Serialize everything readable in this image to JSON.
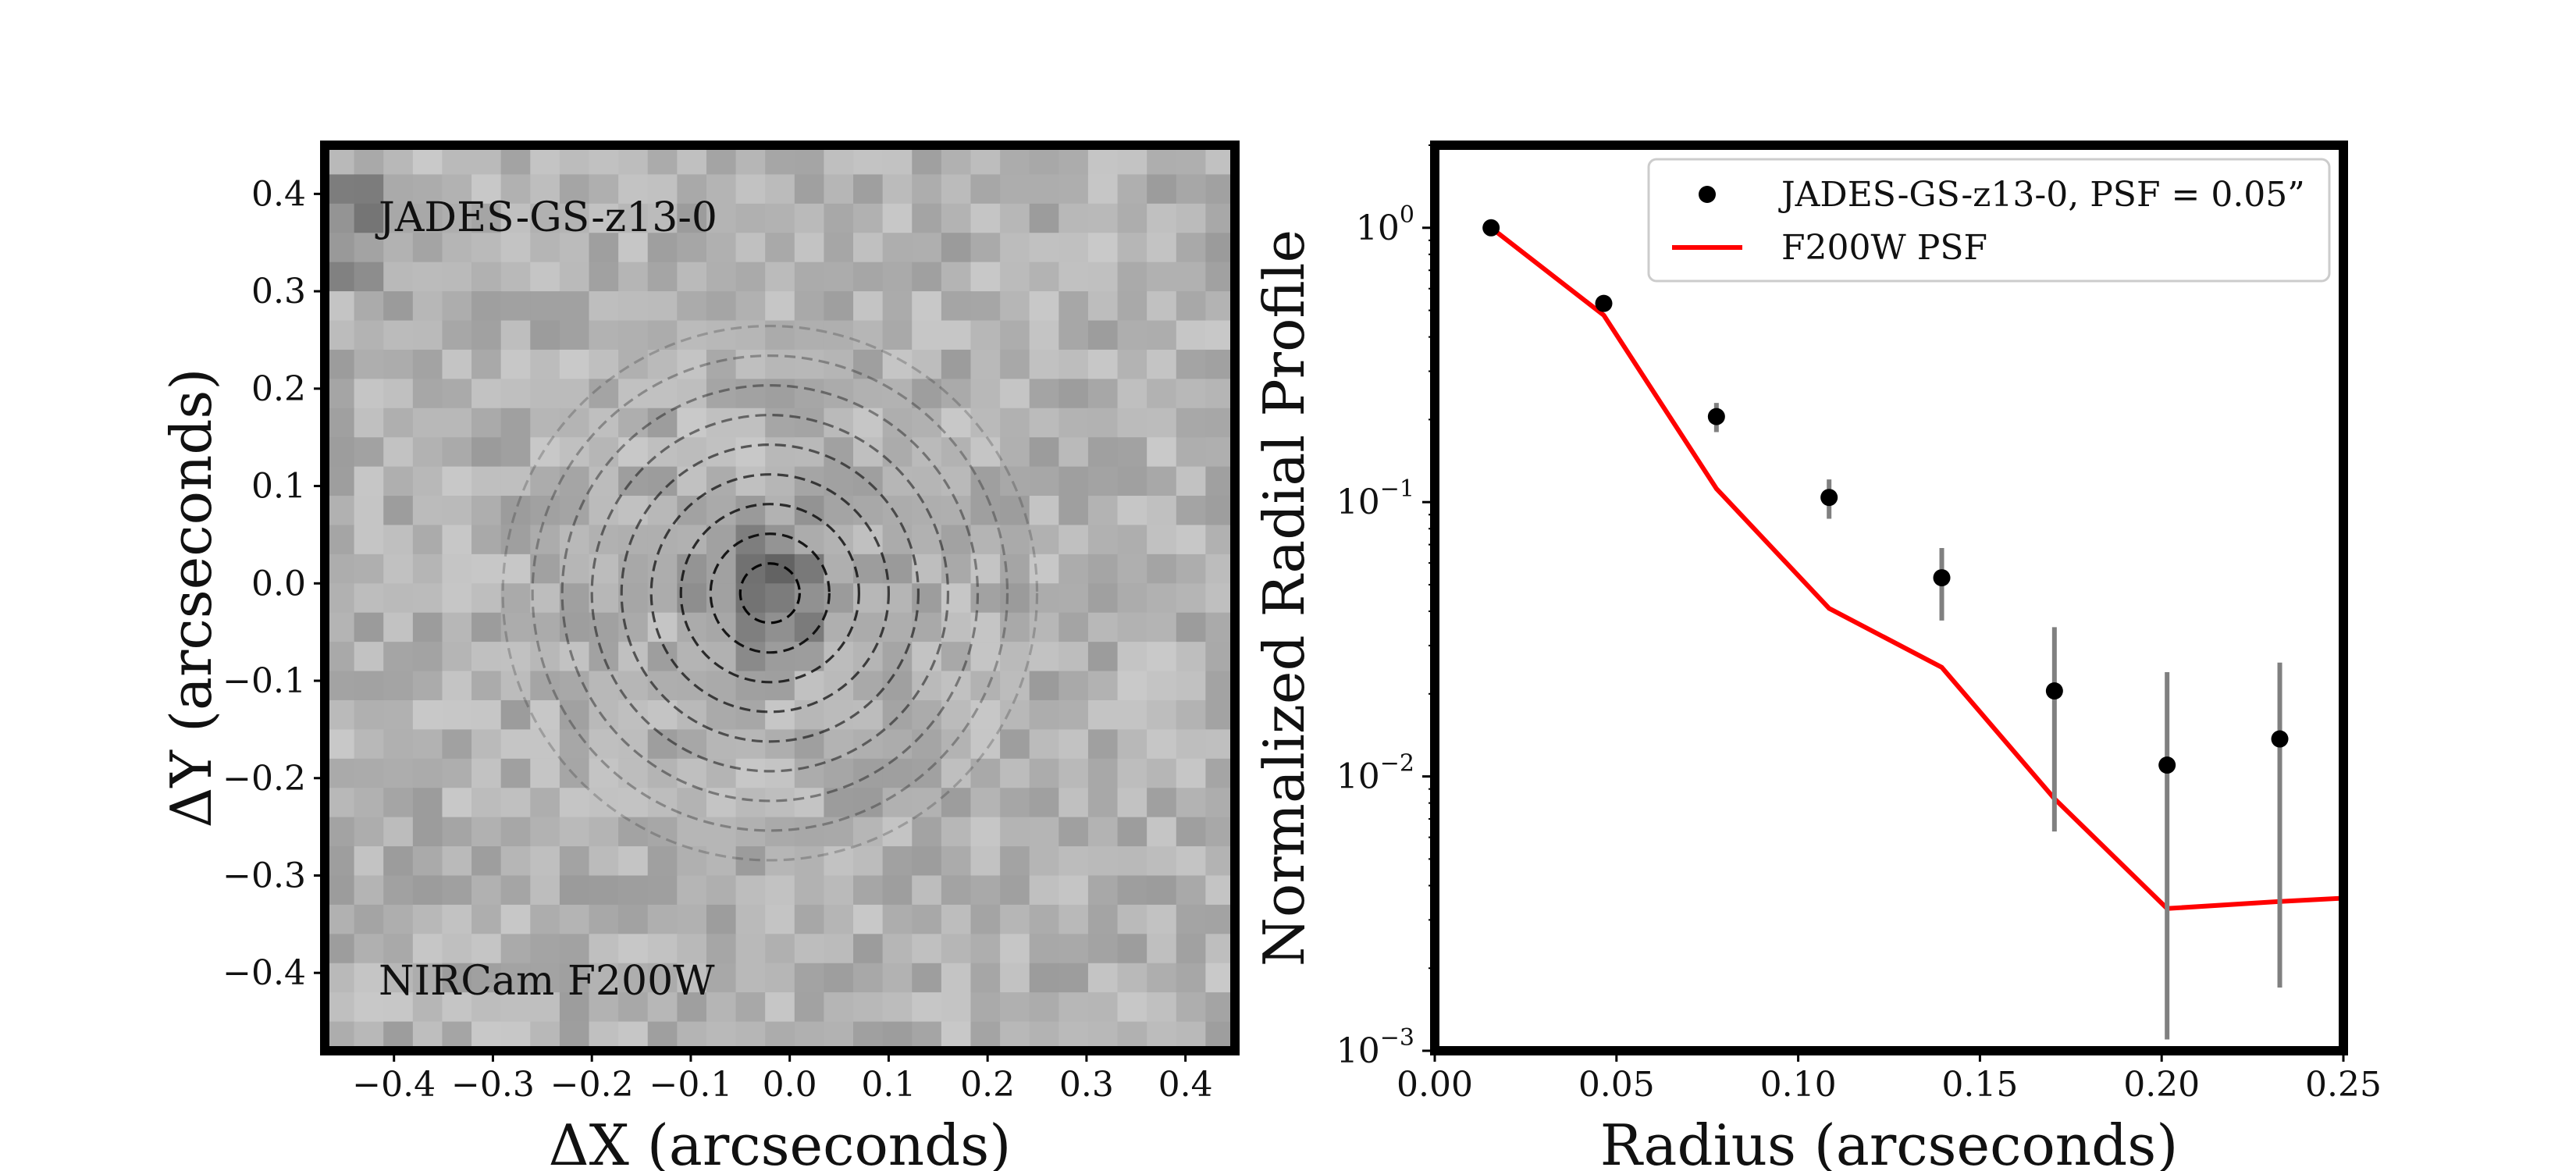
{
  "chart_data": [
    {
      "type": "heatmap",
      "title": "",
      "xlabel": "ΔX (arcseconds)",
      "ylabel": "ΔY (arcseconds)",
      "xlim": [
        -0.47,
        0.45
      ],
      "ylim": [
        -0.48,
        0.45
      ],
      "xticks": [
        -0.4,
        -0.3,
        -0.2,
        -0.1,
        0.0,
        0.1,
        0.2,
        0.3,
        0.4
      ],
      "xtick_labels": [
        "−0.4",
        "−0.3",
        "−0.2",
        "−0.1",
        "0.0",
        "0.1",
        "0.2",
        "0.3",
        "0.4"
      ],
      "yticks": [
        0.4,
        0.3,
        0.2,
        0.1,
        0.0,
        -0.1,
        -0.2,
        -0.3,
        -0.4
      ],
      "ytick_labels": [
        "0.4",
        "0.3",
        "0.2",
        "0.1",
        "0.0",
        "−0.1",
        "−0.2",
        "−0.3",
        "−0.4"
      ],
      "annotations": [
        "JADES-GS-z13-0",
        "NIRCam F200W"
      ],
      "source_center": [
        -0.02,
        -0.01
      ],
      "aperture_radii": [
        0.03,
        0.06,
        0.09,
        0.12,
        0.15,
        0.18,
        0.21,
        0.24,
        0.27
      ],
      "grid": false
    },
    {
      "type": "scatter",
      "title": "",
      "xlabel": "Radius (arcseconds)",
      "ylabel": "Normalized Radial Profile",
      "xlim": [
        0.0,
        0.25
      ],
      "ylim": [
        0.001,
        2.0
      ],
      "yscale": "log",
      "xticks": [
        0.0,
        0.05,
        0.1,
        0.15,
        0.2,
        0.25
      ],
      "xtick_labels": [
        "0.00",
        "0.05",
        "0.10",
        "0.15",
        "0.20",
        "0.25"
      ],
      "yticks": [
        1,
        0.1,
        0.01,
        0.001
      ],
      "ytick_labels": [
        {
          "base": "10",
          "exp": "0"
        },
        {
          "base": "10",
          "exp": "−1"
        },
        {
          "base": "10",
          "exp": "−2"
        },
        {
          "base": "10",
          "exp": "−3"
        }
      ],
      "legend_position": "top-right",
      "grid": false,
      "series": [
        {
          "name": "JADES-GS-z13-0, PSF = 0.05”",
          "kind": "errorbar",
          "color": "#000000",
          "x": [
            0.0155,
            0.0465,
            0.0775,
            0.1085,
            0.1395,
            0.1705,
            0.2015,
            0.2325
          ],
          "y": [
            1.0,
            0.53,
            0.205,
            0.104,
            0.053,
            0.0205,
            0.011,
            0.0137
          ],
          "yerr_low": [
            0.02,
            0.03,
            0.025,
            0.017,
            0.016,
            0.0142,
            0.0099,
            0.012
          ],
          "yerr_high": [
            0.02,
            0.03,
            0.025,
            0.017,
            0.015,
            0.0145,
            0.013,
            0.0123
          ]
        },
        {
          "name": "F200W PSF",
          "kind": "line",
          "color": "#ff0000",
          "x": [
            0.0155,
            0.0465,
            0.0775,
            0.1085,
            0.1395,
            0.1705,
            0.2015,
            0.2325,
            0.25
          ],
          "y": [
            1.0,
            0.48,
            0.112,
            0.041,
            0.025,
            0.0083,
            0.0033,
            0.0035,
            0.0036
          ]
        }
      ]
    }
  ]
}
